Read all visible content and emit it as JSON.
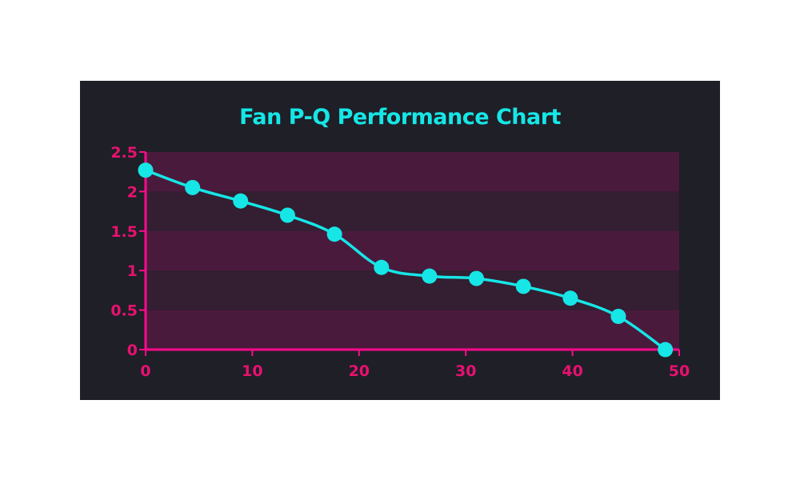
{
  "chart_data": {
    "type": "line",
    "title": "Fan P-Q Performance Chart",
    "xlabel": "",
    "ylabel": "",
    "x": [
      0,
      4.4,
      8.9,
      13.3,
      17.7,
      22.1,
      26.6,
      31.0,
      35.4,
      39.8,
      44.3,
      48.7
    ],
    "series": [
      {
        "name": "",
        "values": [
          2.27,
          2.05,
          1.88,
          1.7,
          1.46,
          1.04,
          0.93,
          0.9,
          0.8,
          0.65,
          0.42,
          0.0
        ]
      }
    ],
    "xlim": [
      0,
      50
    ],
    "ylim": [
      0,
      2.5
    ],
    "x_ticks": [
      0,
      10,
      20,
      30,
      40,
      50
    ],
    "y_ticks": [
      0,
      0.5,
      1,
      1.5,
      2,
      2.5
    ],
    "x_tick_labels": [
      "0",
      "10",
      "20",
      "30",
      "40",
      "50"
    ],
    "y_tick_labels": [
      "0",
      "0.5",
      "1",
      "1.5",
      "2",
      "2.5"
    ],
    "grid": false,
    "smoothed": true,
    "colors": {
      "line": "#16e6e6",
      "axis": "#ff0a8c",
      "tick_text": "#e8116f",
      "band_a": "#4a1a3d",
      "band_b": "#331e32",
      "card_bg": "#1f1f28"
    }
  }
}
